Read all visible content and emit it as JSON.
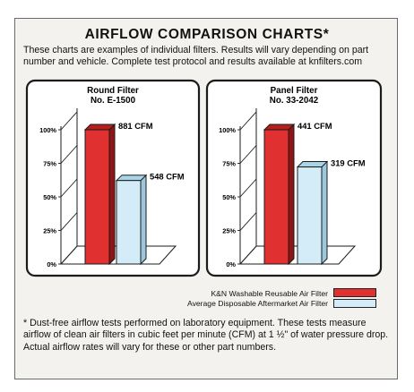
{
  "header": {
    "title": "AIRFLOW COMPARISON CHARTS*",
    "intro": "These charts are examples of individual filters. Results will vary depending on part number and vehicle. Complete test protocol and results available at knfilters.com"
  },
  "colors": {
    "background": "#f3f2ee",
    "red_bar": "#e0302f",
    "red_bar_top": "#b51f1e",
    "red_bar_side": "#8f1514",
    "blue_bar": "#d4ecf7",
    "blue_bar_top": "#a9d3e7",
    "blue_bar_side": "#9cc8dd",
    "outline": "#1b1b1b"
  },
  "chart_data": [
    {
      "type": "bar",
      "title": "Round Filter",
      "subtitle": "No. E-1500",
      "yticks": [
        "0%",
        "25%",
        "50%",
        "75%",
        "100%"
      ],
      "ylim": [
        0,
        100
      ],
      "series": [
        {
          "name": "K&N Washable Reusable Air Filter",
          "value_label": "881 CFM",
          "cfm": 881,
          "percent": 100
        },
        {
          "name": "Average Disposable Aftermarket Air Filter",
          "value_label": "548 CFM",
          "cfm": 548,
          "percent": 62.2
        }
      ]
    },
    {
      "type": "bar",
      "title": "Panel Filter",
      "subtitle": "No. 33-2042",
      "yticks": [
        "0%",
        "25%",
        "50%",
        "75%",
        "100%"
      ],
      "ylim": [
        0,
        100
      ],
      "series": [
        {
          "name": "K&N Washable Reusable Air Filter",
          "value_label": "441 CFM",
          "cfm": 441,
          "percent": 100
        },
        {
          "name": "Average Disposable Aftermarket Air Filter",
          "value_label": "319 CFM",
          "cfm": 319,
          "percent": 72.3
        }
      ]
    }
  ],
  "legend": {
    "solid_label": "K&N Washable Reusable Air Filter",
    "hollow_label": "Average Disposable Aftermarket Air Filter"
  },
  "footnote": {
    "text_a": "* Dust-free airflow tests performed on laboratory equipment. These tests measure airflow of clean air filters in cubic feet per minute (CFM) at 1 ",
    "half": "½",
    "text_b": "\" of water pressure drop. Actual airflow rates will vary for these or other part numbers."
  }
}
